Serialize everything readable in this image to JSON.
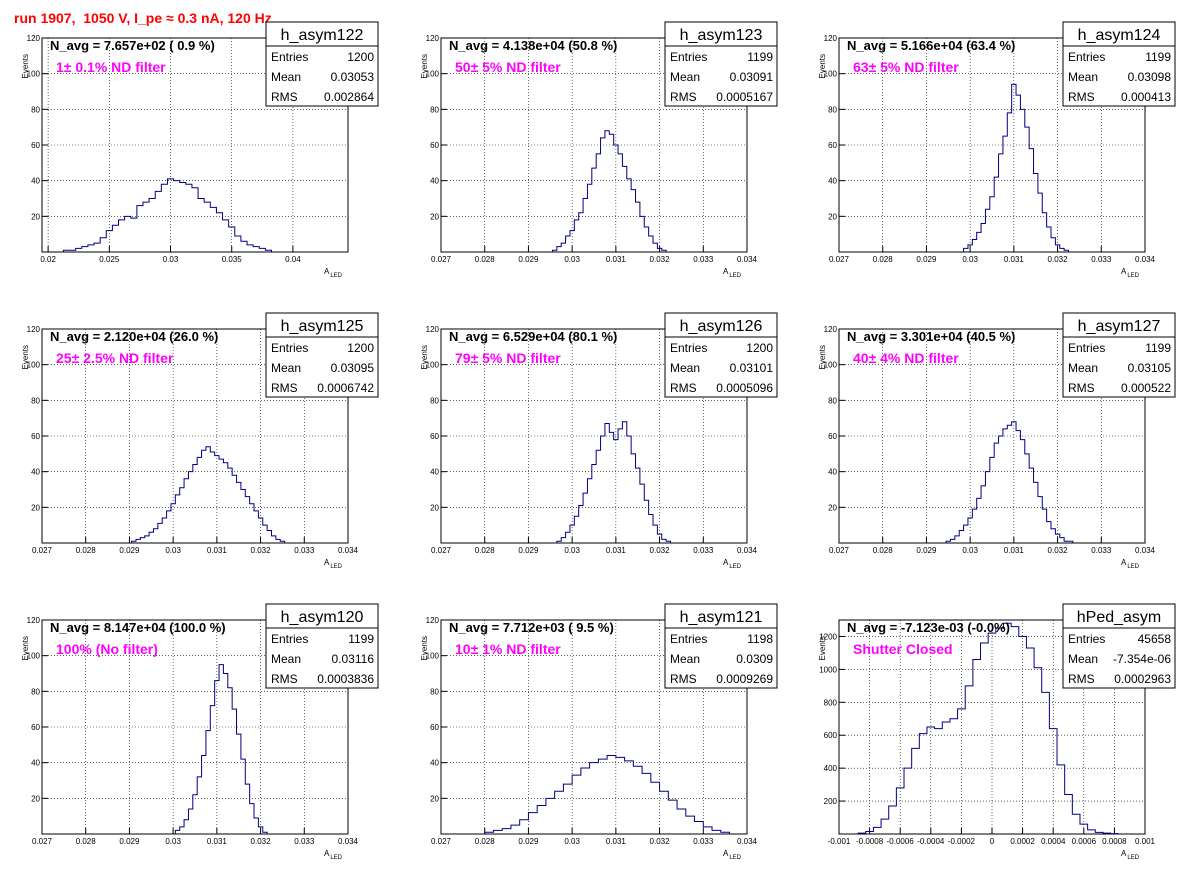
{
  "title": "run 1907,  1050 V, I_pe ≈ 0.3 nA, 120 Hz",
  "colors": {
    "title": "#ff0000",
    "histogram": "#000080",
    "filter_label": "#ff00ff",
    "grid": "#000000"
  },
  "axis_labels": {
    "y": "Events",
    "x_main": "A",
    "x_sub": "LED"
  },
  "stats_labels": {
    "entries": "Entries",
    "mean": "Mean",
    "rms": "RMS"
  },
  "chart_data": [
    {
      "type": "histogram",
      "name": "h_asym122",
      "navg": "N_avg = 7.657e+02 ( 0.9 %)",
      "filter": "1± 0.1% ND filter",
      "stats": {
        "entries": "1200",
        "mean": "0.03053",
        "rms": "0.002864"
      },
      "xlim": [
        0.0195,
        0.0445
      ],
      "ylim": [
        0,
        120
      ],
      "xticks": [
        "0.02",
        "0.025",
        "0.03",
        "0.035",
        "0.04"
      ],
      "yticks": [
        "20",
        "40",
        "60",
        "80",
        "100",
        "120"
      ],
      "bin_centers": [
        0.0215,
        0.022,
        0.0225,
        0.023,
        0.0235,
        0.024,
        0.0245,
        0.025,
        0.0255,
        0.026,
        0.0265,
        0.027,
        0.0275,
        0.028,
        0.0285,
        0.029,
        0.0295,
        0.03,
        0.0305,
        0.031,
        0.0315,
        0.032,
        0.0325,
        0.033,
        0.0335,
        0.034,
        0.0345,
        0.035,
        0.0355,
        0.036,
        0.0365,
        0.037,
        0.0375,
        0.038
      ],
      "counts": [
        1,
        1,
        2,
        3,
        4,
        5,
        8,
        12,
        15,
        18,
        20,
        19,
        26,
        28,
        30,
        34,
        38,
        41,
        40,
        39,
        38,
        36,
        30,
        28,
        25,
        22,
        18,
        14,
        9,
        6,
        4,
        3,
        2,
        1
      ]
    },
    {
      "type": "histogram",
      "name": "h_asym123",
      "navg": "N_avg = 4.138e+04 (50.8 %)",
      "filter": "50± 5% ND filter",
      "stats": {
        "entries": "1199",
        "mean": "0.03091",
        "rms": "0.0005167"
      },
      "xlim": [
        0.027,
        0.034
      ],
      "ylim": [
        0,
        120
      ],
      "xticks": [
        "0.027",
        "0.028",
        "0.029",
        "0.03",
        "0.031",
        "0.032",
        "0.033",
        "0.034"
      ],
      "yticks": [
        "20",
        "40",
        "60",
        "80",
        "100",
        "120"
      ],
      "bin_centers": [
        0.0296,
        0.0297,
        0.0298,
        0.0299,
        0.03,
        0.0301,
        0.0302,
        0.0303,
        0.0304,
        0.0305,
        0.0306,
        0.0307,
        0.0308,
        0.0309,
        0.031,
        0.0311,
        0.0312,
        0.0313,
        0.0314,
        0.0315,
        0.0316,
        0.0317,
        0.0318,
        0.0319,
        0.032,
        0.0321
      ],
      "counts": [
        1,
        3,
        5,
        9,
        12,
        18,
        22,
        30,
        38,
        47,
        55,
        64,
        68,
        66,
        60,
        55,
        48,
        41,
        35,
        28,
        20,
        14,
        9,
        5,
        2,
        1
      ]
    },
    {
      "type": "histogram",
      "name": "h_asym124",
      "navg": "N_avg = 5.166e+04 (63.4 %)",
      "filter": "63± 5% ND filter",
      "stats": {
        "entries": "1199",
        "mean": "0.03098",
        "rms": "0.000413"
      },
      "xlim": [
        0.027,
        0.034
      ],
      "ylim": [
        0,
        120
      ],
      "xticks": [
        "0.027",
        "0.028",
        "0.029",
        "0.03",
        "0.031",
        "0.032",
        "0.033",
        "0.034"
      ],
      "yticks": [
        "20",
        "40",
        "60",
        "80",
        "100",
        "120"
      ],
      "bin_centers": [
        0.0299,
        0.03,
        0.0301,
        0.0302,
        0.0303,
        0.0304,
        0.0305,
        0.0306,
        0.0307,
        0.0308,
        0.0309,
        0.031,
        0.0311,
        0.0312,
        0.0313,
        0.0314,
        0.0315,
        0.0316,
        0.0317,
        0.0318,
        0.0319,
        0.032,
        0.0321,
        0.0322
      ],
      "counts": [
        2,
        4,
        7,
        11,
        16,
        24,
        31,
        42,
        55,
        65,
        78,
        94,
        88,
        80,
        70,
        58,
        44,
        33,
        22,
        14,
        8,
        4,
        2,
        1
      ]
    },
    {
      "type": "histogram",
      "name": "h_asym125",
      "navg": "N_avg = 2.120e+04 (26.0 %)",
      "filter": "25± 2.5% ND filter",
      "stats": {
        "entries": "1200",
        "mean": "0.03095",
        "rms": "0.0006742"
      },
      "xlim": [
        0.027,
        0.034
      ],
      "ylim": [
        0,
        120
      ],
      "xticks": [
        "0.027",
        "0.028",
        "0.029",
        "0.03",
        "0.031",
        "0.032",
        "0.033",
        "0.034"
      ],
      "yticks": [
        "20",
        "40",
        "60",
        "80",
        "100",
        "120"
      ],
      "bin_centers": [
        0.0291,
        0.0292,
        0.0293,
        0.0294,
        0.0295,
        0.0296,
        0.0297,
        0.0298,
        0.0299,
        0.03,
        0.0301,
        0.0302,
        0.0303,
        0.0304,
        0.0305,
        0.0306,
        0.0307,
        0.0308,
        0.0309,
        0.031,
        0.0311,
        0.0312,
        0.0313,
        0.0314,
        0.0315,
        0.0316,
        0.0317,
        0.0318,
        0.0319,
        0.032,
        0.0321,
        0.0322,
        0.0323,
        0.0324,
        0.0325
      ],
      "counts": [
        1,
        2,
        3,
        4,
        6,
        8,
        11,
        14,
        18,
        22,
        27,
        31,
        36,
        40,
        44,
        48,
        52,
        54,
        51,
        49,
        47,
        45,
        42,
        38,
        34,
        30,
        26,
        22,
        18,
        14,
        10,
        7,
        4,
        2,
        1
      ]
    },
    {
      "type": "histogram",
      "name": "h_asym126",
      "navg": "N_avg = 6.529e+04 (80.1 %)",
      "filter": "79± 5% ND filter",
      "stats": {
        "entries": "1200",
        "mean": "0.03101",
        "rms": "0.0005096"
      },
      "xlim": [
        0.027,
        0.034
      ],
      "ylim": [
        0,
        120
      ],
      "xticks": [
        "0.027",
        "0.028",
        "0.029",
        "0.03",
        "0.031",
        "0.032",
        "0.033",
        "0.034"
      ],
      "yticks": [
        "20",
        "40",
        "60",
        "80",
        "100",
        "120"
      ],
      "bin_centers": [
        0.0297,
        0.0298,
        0.0299,
        0.03,
        0.0301,
        0.0302,
        0.0303,
        0.0304,
        0.0305,
        0.0306,
        0.0307,
        0.0308,
        0.0309,
        0.031,
        0.0311,
        0.0312,
        0.0313,
        0.0314,
        0.0315,
        0.0316,
        0.0317,
        0.0318,
        0.0319,
        0.032,
        0.0321,
        0.0322
      ],
      "counts": [
        1,
        3,
        6,
        10,
        15,
        21,
        28,
        36,
        44,
        52,
        60,
        67,
        62,
        58,
        64,
        68,
        60,
        50,
        42,
        33,
        24,
        16,
        10,
        5,
        2,
        1
      ]
    },
    {
      "type": "histogram",
      "name": "h_asym127",
      "navg": "N_avg = 3.301e+04 (40.5 %)",
      "filter": "40± 4% ND filter",
      "stats": {
        "entries": "1199",
        "mean": "0.03105",
        "rms": "0.000522"
      },
      "xlim": [
        0.027,
        0.034
      ],
      "ylim": [
        0,
        120
      ],
      "xticks": [
        "0.027",
        "0.028",
        "0.029",
        "0.03",
        "0.031",
        "0.032",
        "0.033",
        "0.034"
      ],
      "yticks": [
        "20",
        "40",
        "60",
        "80",
        "100",
        "120"
      ],
      "bin_centers": [
        0.0295,
        0.0296,
        0.0297,
        0.0298,
        0.0299,
        0.03,
        0.0301,
        0.0302,
        0.0303,
        0.0304,
        0.0305,
        0.0306,
        0.0307,
        0.0308,
        0.0309,
        0.031,
        0.0311,
        0.0312,
        0.0313,
        0.0314,
        0.0315,
        0.0316,
        0.0317,
        0.0318,
        0.0319,
        0.032,
        0.0321,
        0.0322,
        0.0323
      ],
      "counts": [
        1,
        2,
        4,
        7,
        10,
        14,
        19,
        25,
        32,
        40,
        48,
        56,
        60,
        64,
        66,
        68,
        63,
        58,
        50,
        42,
        34,
        26,
        19,
        12,
        8,
        5,
        3,
        1,
        1
      ]
    },
    {
      "type": "histogram",
      "name": "h_asym120",
      "navg": "N_avg = 8.147e+04 (100.0 %)",
      "filter": "100% (No filter)",
      "stats": {
        "entries": "1199",
        "mean": "0.03116",
        "rms": "0.0003836"
      },
      "xlim": [
        0.027,
        0.034
      ],
      "ylim": [
        0,
        120
      ],
      "xticks": [
        "0.027",
        "0.028",
        "0.029",
        "0.03",
        "0.031",
        "0.032",
        "0.033",
        "0.034"
      ],
      "yticks": [
        "20",
        "40",
        "60",
        "80",
        "100",
        "120"
      ],
      "bin_centers": [
        0.0301,
        0.0302,
        0.0303,
        0.0304,
        0.0305,
        0.0306,
        0.0307,
        0.0308,
        0.0309,
        0.031,
        0.0311,
        0.0312,
        0.0313,
        0.0314,
        0.0315,
        0.0316,
        0.0317,
        0.0318,
        0.0319,
        0.032,
        0.0321
      ],
      "counts": [
        2,
        4,
        8,
        14,
        22,
        32,
        44,
        58,
        72,
        86,
        95,
        90,
        82,
        70,
        56,
        42,
        28,
        17,
        9,
        4,
        1
      ]
    },
    {
      "type": "histogram",
      "name": "h_asym121",
      "navg": "N_avg = 7.712e+03 ( 9.5 %)",
      "filter": "10± 1% ND filter",
      "stats": {
        "entries": "1198",
        "mean": "0.0309",
        "rms": "0.0009269"
      },
      "xlim": [
        0.027,
        0.034
      ],
      "ylim": [
        0,
        120
      ],
      "xticks": [
        "0.027",
        "0.028",
        "0.029",
        "0.03",
        "0.031",
        "0.032",
        "0.033",
        "0.034"
      ],
      "yticks": [
        "20",
        "40",
        "60",
        "80",
        "100",
        "120"
      ],
      "bin_centers": [
        0.0281,
        0.0283,
        0.0285,
        0.0287,
        0.0289,
        0.0291,
        0.0293,
        0.0295,
        0.0297,
        0.0299,
        0.0301,
        0.0303,
        0.0305,
        0.0307,
        0.0309,
        0.0311,
        0.0313,
        0.0315,
        0.0317,
        0.0319,
        0.0321,
        0.0323,
        0.0325,
        0.0327,
        0.0329,
        0.0331,
        0.0333,
        0.0335
      ],
      "counts": [
        1,
        2,
        3,
        5,
        8,
        12,
        16,
        20,
        24,
        28,
        33,
        37,
        40,
        42,
        44,
        43,
        41,
        38,
        34,
        29,
        24,
        19,
        14,
        10,
        7,
        4,
        2,
        1
      ]
    },
    {
      "type": "histogram",
      "name": "hPed_asym",
      "navg": "N_avg = -7.123e-03 (-0.0%)",
      "filter": "Shutter Closed",
      "stats": {
        "entries": "45658",
        "mean": "-7.354e-06",
        "rms": "0.0002963"
      },
      "xlim": [
        -0.001,
        0.001
      ],
      "ylim": [
        0,
        1300
      ],
      "xticks": [
        "-0.001",
        "-0.0008",
        "-0.0006",
        "-0.0004",
        "-0.0002",
        "0",
        "0.0002",
        "0.0004",
        "0.0006",
        "0.0008",
        "0.001"
      ],
      "yticks": [
        "200",
        "400",
        "600",
        "800",
        "1000",
        "1200"
      ],
      "bin_centers": [
        -0.00085,
        -0.0008,
        -0.00075,
        -0.0007,
        -0.00065,
        -0.0006,
        -0.00055,
        -0.0005,
        -0.00045,
        -0.0004,
        -0.00035,
        -0.0003,
        -0.00025,
        -0.0002,
        -0.00015,
        -0.0001,
        -5e-05,
        0.0,
        5e-05,
        0.0001,
        0.00015,
        0.0002,
        0.00025,
        0.0003,
        0.00035,
        0.0004,
        0.00045,
        0.0005,
        0.00055,
        0.0006,
        0.00065,
        0.0007,
        0.00075,
        0.0008
      ],
      "counts": [
        5,
        15,
        40,
        90,
        170,
        280,
        400,
        520,
        610,
        650,
        640,
        680,
        700,
        760,
        900,
        1060,
        1160,
        1220,
        1250,
        1280,
        1260,
        1200,
        1130,
        1010,
        860,
        640,
        420,
        240,
        120,
        60,
        25,
        10,
        5,
        2
      ]
    }
  ]
}
